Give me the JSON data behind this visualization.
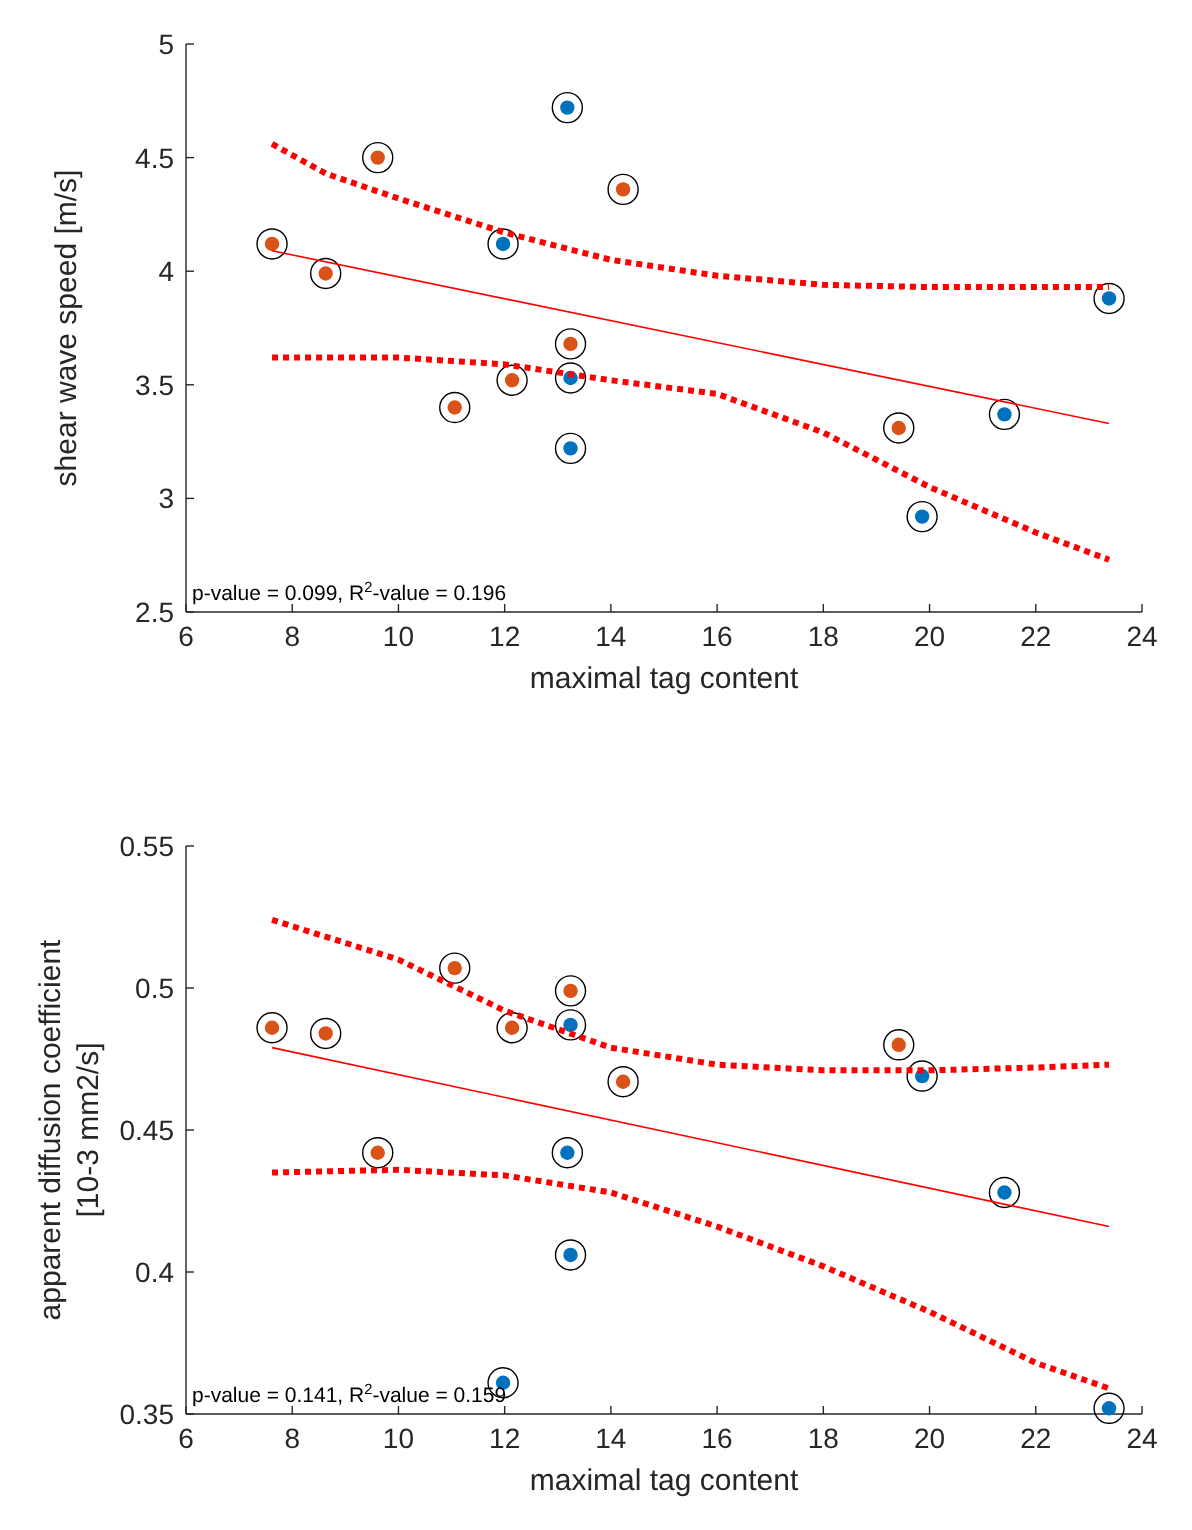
{
  "chart_data": [
    {
      "type": "scatter",
      "xlabel": "maximal tag content",
      "ylabel": "shear wave speed [m/s]",
      "xlim": [
        6,
        24
      ],
      "xticks": [
        6,
        8,
        10,
        12,
        14,
        16,
        18,
        20,
        22,
        24
      ],
      "ylim": [
        2.5,
        5
      ],
      "yticks": [
        2.5,
        3,
        3.5,
        4,
        4.5,
        5
      ],
      "grid": false,
      "annotations": [
        "p-value = 0.099, R$^{2}$-value = 0.196"
      ],
      "series": [
        {
          "color": "#d95319",
          "marker": "circle",
          "x": [
            7.62,
            8.63,
            9.61,
            11.06,
            12.14,
            13.24,
            14.23,
            19.42
          ],
          "values": [
            4.12,
            3.99,
            4.5,
            3.4,
            3.52,
            3.68,
            4.36,
            3.31
          ]
        },
        {
          "color": "#0072bd",
          "marker": "circle",
          "x": [
            11.97,
            13.18,
            13.24,
            13.24,
            19.86,
            21.41,
            23.38
          ],
          "values": [
            4.12,
            4.72,
            3.53,
            3.22,
            2.92,
            3.37,
            3.88
          ]
        },
        {
          "type": "line",
          "color": "#ff0000",
          "line_style": "solid",
          "x": [
            7.62,
            23.38
          ],
          "values": [
            4.09,
            3.33
          ]
        },
        {
          "type": "line",
          "color": "#ff0000",
          "line_style": "dotted",
          "x": [
            7.62,
            8.63,
            10,
            12,
            14,
            16,
            18,
            20,
            22,
            23.38
          ],
          "values": [
            4.56,
            4.43,
            4.32,
            4.17,
            4.05,
            3.98,
            3.94,
            3.93,
            3.93,
            3.93
          ]
        },
        {
          "type": "line",
          "color": "#ff0000",
          "line_style": "dotted",
          "x": [
            7.62,
            10,
            12,
            14,
            16,
            18,
            20,
            22,
            23.38
          ],
          "values": [
            3.62,
            3.62,
            3.59,
            3.52,
            3.46,
            3.29,
            3.05,
            2.85,
            2.73
          ]
        }
      ]
    },
    {
      "type": "scatter",
      "xlabel": "maximal tag content",
      "ylabel": "apparent diffusion coefficient\n[10-3 mm2/s]",
      "xlim": [
        6,
        24
      ],
      "xticks": [
        6,
        8,
        10,
        12,
        14,
        16,
        18,
        20,
        22,
        24
      ],
      "ylim": [
        0.35,
        0.55
      ],
      "yticks": [
        0.35,
        0.4,
        0.45,
        0.5,
        0.55
      ],
      "grid": false,
      "annotations": [
        "p-value = 0.141, R$^{2}$-value = 0.159"
      ],
      "series": [
        {
          "color": "#d95319",
          "marker": "circle",
          "x": [
            7.62,
            8.63,
            9.61,
            11.06,
            12.14,
            13.24,
            14.23,
            19.42
          ],
          "values": [
            0.486,
            0.484,
            0.442,
            0.507,
            0.486,
            0.499,
            0.467,
            0.48
          ]
        },
        {
          "color": "#0072bd",
          "marker": "circle",
          "x": [
            11.97,
            13.18,
            13.24,
            13.24,
            19.86,
            21.41,
            23.38
          ],
          "values": [
            0.361,
            0.442,
            0.487,
            0.406,
            0.469,
            0.428,
            0.352
          ]
        },
        {
          "type": "line",
          "color": "#ff0000",
          "line_style": "solid",
          "x": [
            7.62,
            23.38
          ],
          "values": [
            0.479,
            0.416
          ]
        },
        {
          "type": "line",
          "color": "#ff0000",
          "line_style": "dotted",
          "x": [
            7.62,
            10,
            12,
            14,
            16,
            18,
            20,
            22,
            23.38
          ],
          "values": [
            0.524,
            0.51,
            0.492,
            0.479,
            0.473,
            0.471,
            0.471,
            0.472,
            0.473
          ]
        },
        {
          "type": "line",
          "color": "#ff0000",
          "line_style": "dotted",
          "x": [
            7.62,
            10,
            12,
            14,
            16,
            18,
            20,
            22,
            23.38
          ],
          "values": [
            0.435,
            0.436,
            0.434,
            0.428,
            0.416,
            0.402,
            0.386,
            0.368,
            0.359
          ]
        }
      ]
    }
  ]
}
